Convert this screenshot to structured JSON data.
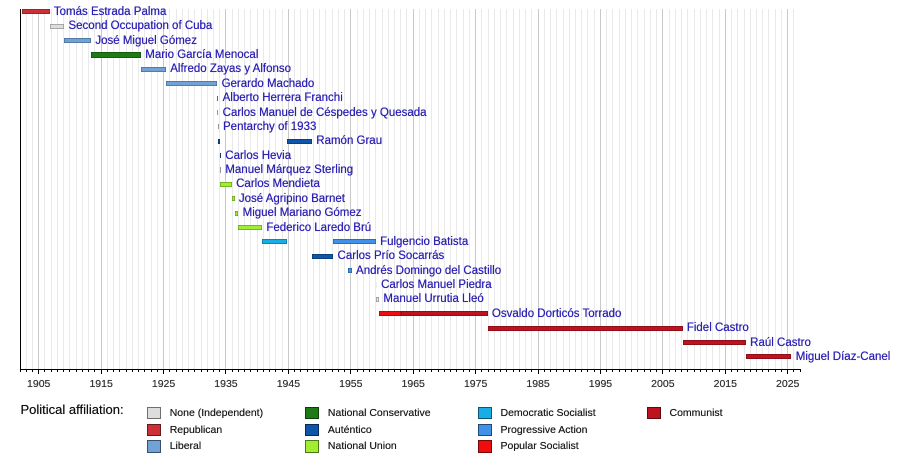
{
  "chart_data": {
    "type": "timeline",
    "title": "",
    "x_axis": {
      "start_year": 1902,
      "end_year": 2027,
      "minor_tick_step_years": 1,
      "major_tick_step_years": 10,
      "tick_labels": [
        "1905",
        "1915",
        "1925",
        "1935",
        "1945",
        "1955",
        "1965",
        "1975",
        "1985",
        "1995",
        "2005",
        "2015",
        "2025"
      ],
      "tick_label_years": [
        1905,
        1915,
        1925,
        1935,
        1945,
        1955,
        1965,
        1975,
        1985,
        1995,
        2005,
        2015,
        2025
      ],
      "grid": true
    },
    "parties": {
      "independent": {
        "label": "None (Independent)",
        "color": "#dcdedc"
      },
      "republican": {
        "label": "Republican",
        "color": "#cd3138"
      },
      "liberal": {
        "label": "Liberal",
        "color": "#70a1d7"
      },
      "national_conservative": {
        "label": "National Conservative",
        "color": "#1e7a14"
      },
      "autentico": {
        "label": "Auténtico",
        "color": "#0f56a8"
      },
      "national_union": {
        "label": "National Union",
        "color": "#9fee2f"
      },
      "democratic_socialist": {
        "label": "Democratic Socialist",
        "color": "#19ade6"
      },
      "progressive_action": {
        "label": "Progressive Action",
        "color": "#4191e8"
      },
      "popular_socialist": {
        "label": "Popular Socialist",
        "color": "#f00d0d"
      },
      "communist": {
        "label": "Communist",
        "color": "#bf1220"
      },
      "unshown": {
        "label": "",
        "color": "#ededed"
      }
    },
    "rows": [
      {
        "label": "Tomás Estrada Palma",
        "segments": [
          {
            "party": "republican",
            "start": 1902.38,
            "end": 1906.74
          }
        ]
      },
      {
        "label": "Second Occupation of Cuba",
        "segments": [
          {
            "party": "independent",
            "start": 1906.74,
            "end": 1909.08
          }
        ]
      },
      {
        "label": "José Miguel Gómez",
        "segments": [
          {
            "party": "liberal",
            "start": 1909.08,
            "end": 1913.38
          }
        ]
      },
      {
        "label": "Mario García Menocal",
        "segments": [
          {
            "party": "national_conservative",
            "start": 1913.38,
            "end": 1921.38
          }
        ]
      },
      {
        "label": "Alfredo Zayas y Alfonso",
        "segments": [
          {
            "party": "liberal",
            "start": 1921.38,
            "end": 1925.38
          }
        ]
      },
      {
        "label": "Gerardo Machado",
        "segments": [
          {
            "party": "liberal",
            "start": 1925.38,
            "end": 1933.61
          }
        ]
      },
      {
        "label": "Alberto Herrera Franchi",
        "segments": [
          {
            "party": "liberal",
            "start": 1933.61,
            "end": 1933.62
          }
        ]
      },
      {
        "label": "Carlos Manuel de Céspedes y Quesada",
        "segments": [
          {
            "party": "independent",
            "start": 1933.62,
            "end": 1933.68
          }
        ]
      },
      {
        "label": "Pentarchy of 1933",
        "segments": [
          {
            "party": "independent",
            "start": 1933.68,
            "end": 1933.69
          }
        ]
      },
      {
        "label": "Ramón Grau",
        "segments": [
          {
            "party": "autentico",
            "start": 1933.69,
            "end": 1934.04
          },
          {
            "party": "autentico",
            "start": 1944.78,
            "end": 1948.78
          }
        ]
      },
      {
        "label": "Carlos Hevia",
        "segments": [
          {
            "party": "autentico",
            "start": 1934.04,
            "end": 1934.05
          }
        ]
      },
      {
        "label": "Manuel Márquez Sterling",
        "segments": [
          {
            "party": "independent",
            "start": 1934.05,
            "end": 1934.06
          }
        ]
      },
      {
        "label": "Carlos Mendieta",
        "segments": [
          {
            "party": "national_union",
            "start": 1934.06,
            "end": 1935.94
          }
        ]
      },
      {
        "label": "José Agripino Barnet",
        "segments": [
          {
            "party": "national_union",
            "start": 1935.94,
            "end": 1936.38
          }
        ]
      },
      {
        "label": "Miguel Mariano Gómez",
        "segments": [
          {
            "party": "national_union",
            "start": 1936.38,
            "end": 1936.98
          }
        ]
      },
      {
        "label": "Federico Laredo Brú",
        "segments": [
          {
            "party": "national_union",
            "start": 1936.98,
            "end": 1940.78
          }
        ]
      },
      {
        "label": "Fulgencio Batista",
        "segments": [
          {
            "party": "democratic_socialist",
            "start": 1940.78,
            "end": 1944.78
          },
          {
            "party": "progressive_action",
            "start": 1952.19,
            "end": 1959.0
          }
        ]
      },
      {
        "label": "Carlos Prío Socarrás",
        "segments": [
          {
            "party": "autentico",
            "start": 1948.78,
            "end": 1952.19
          }
        ]
      },
      {
        "label": "Andrés Domingo del Castillo",
        "segments": [
          {
            "party": "progressive_action",
            "start": 1954.62,
            "end": 1955.15
          }
        ]
      },
      {
        "label": "Carlos Manuel Piedra",
        "segments": [
          {
            "party": "unshown",
            "start": 1959.0,
            "end": 1959.01
          }
        ]
      },
      {
        "label": "Manuel Urrutia Lleó",
        "segments": [
          {
            "party": "independent",
            "start": 1959.01,
            "end": 1959.54
          }
        ]
      },
      {
        "label": "Osvaldo Dorticós Torrado",
        "segments": [
          {
            "party": "popular_socialist",
            "start": 1959.54,
            "end": 1963.0
          },
          {
            "party": "communist",
            "start": 1963.0,
            "end": 1976.92
          }
        ]
      },
      {
        "label": "Fidel Castro",
        "segments": [
          {
            "party": "communist",
            "start": 1976.92,
            "end": 2008.15
          }
        ]
      },
      {
        "label": "Raúl Castro",
        "segments": [
          {
            "party": "communist",
            "start": 2008.15,
            "end": 2018.3
          }
        ]
      },
      {
        "label": "Miguel Díaz-Canel",
        "segments": [
          {
            "party": "communist",
            "start": 2018.3,
            "end": 2025.6
          }
        ]
      }
    ],
    "legend_title": "Political affiliation:",
    "legend_columns": [
      [
        "independent",
        "republican",
        "liberal"
      ],
      [
        "national_conservative",
        "autentico",
        "national_union"
      ],
      [
        "democratic_socialist",
        "progressive_action",
        "popular_socialist"
      ],
      [
        "communist"
      ]
    ]
  },
  "colors": {
    "background": "#ffffff",
    "row_label_text": "#2a20b2",
    "tick_label_text": "#333333",
    "legend_text": "#1a1a1a",
    "legend_title_text": "#111111",
    "axis_line": "#000000",
    "grid_minor": "#e9e9e9",
    "grid_major": "#c9c9cb"
  }
}
